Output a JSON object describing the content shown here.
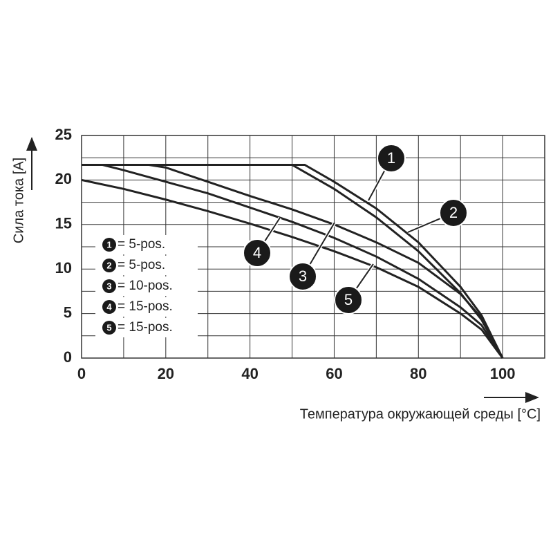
{
  "chart_data": {
    "type": "line",
    "y_label": "Сила тока [A]",
    "x_label": "Температура окружающей среды [°C]",
    "xlim": [
      0,
      110
    ],
    "xticks": [
      0,
      20,
      40,
      60,
      80,
      100
    ],
    "xgrid_minor": [
      10,
      30,
      50,
      70,
      90
    ],
    "ylim": [
      0,
      25
    ],
    "yticks": [
      0,
      5,
      10,
      15,
      20,
      25
    ],
    "ygrid_minor": [
      2.5,
      7.5,
      12.5,
      17.5,
      22.5
    ],
    "grid": true,
    "legend": "left",
    "series": [
      {
        "label": "1",
        "name": "= 5-pos.",
        "color": "#222222",
        "x": [
          0,
          53,
          60,
          70,
          80,
          90,
          95,
          100
        ],
        "values": [
          21.7,
          21.7,
          19.8,
          16.8,
          13,
          8,
          4.8,
          0
        ]
      },
      {
        "label": "2",
        "name": "= 5-pos.",
        "color": "#222222",
        "x": [
          0,
          50,
          60,
          70,
          80,
          90,
          95,
          100
        ],
        "values": [
          21.7,
          21.7,
          19,
          15.8,
          12,
          7.3,
          4.3,
          0
        ]
      },
      {
        "label": "3",
        "name": "= 10-pos.",
        "color": "#222222",
        "x": [
          16,
          20,
          30,
          40,
          50,
          60,
          70,
          80,
          90,
          95,
          100
        ],
        "values": [
          21.7,
          21.4,
          19.8,
          18.2,
          16.7,
          15,
          13,
          10.7,
          7.2,
          4.5,
          0
        ]
      },
      {
        "label": "4",
        "name": "= 15-pos.",
        "color": "#222222",
        "x": [
          5,
          10,
          20,
          30,
          40,
          50,
          60,
          70,
          80,
          90,
          95,
          100
        ],
        "values": [
          21.7,
          21.1,
          19.8,
          18.5,
          16.9,
          15.3,
          13.5,
          11.4,
          8.9,
          5.7,
          3.7,
          0
        ]
      },
      {
        "label": "5",
        "name": "= 15-pos.",
        "color": "#222222",
        "x": [
          0,
          10,
          20,
          30,
          40,
          50,
          60,
          70,
          80,
          90,
          95,
          100
        ],
        "values": [
          20,
          19,
          17.8,
          16.5,
          15.1,
          13.6,
          12,
          10.2,
          8,
          5,
          3.2,
          0
        ]
      }
    ]
  }
}
